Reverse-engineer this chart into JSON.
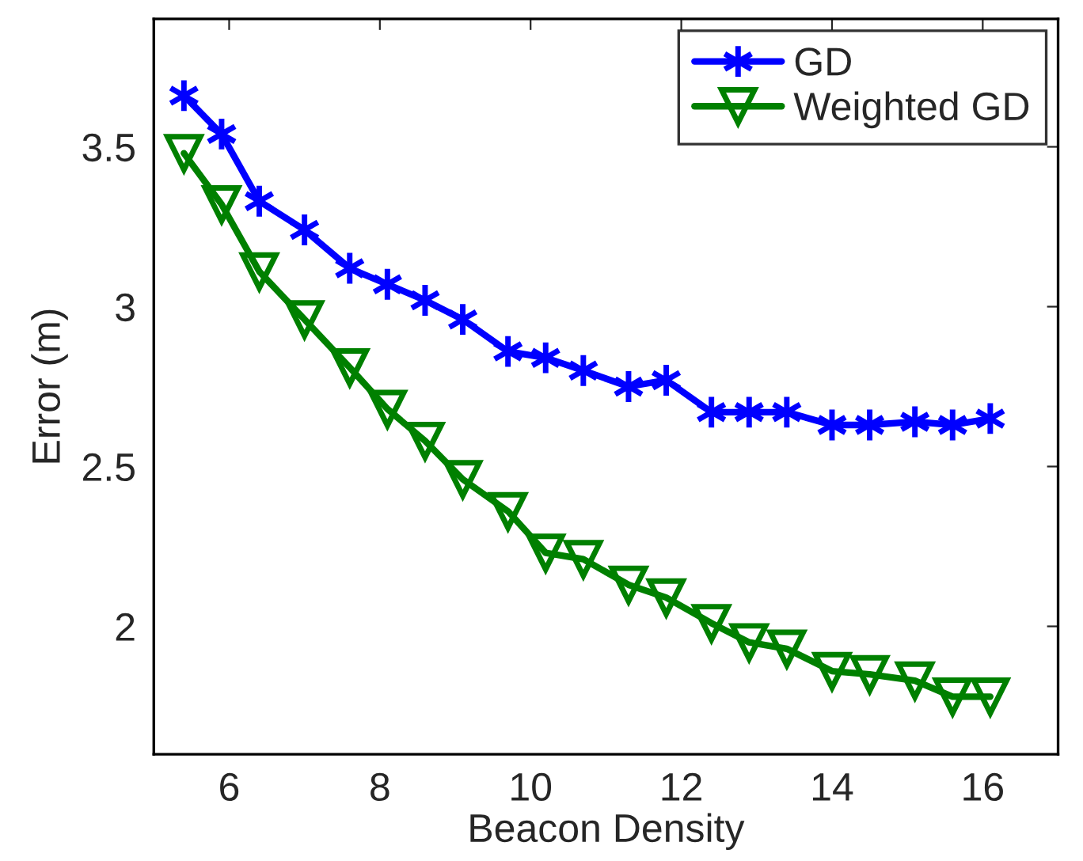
{
  "chart_data": {
    "type": "line",
    "xlabel": "Beacon Density",
    "ylabel": "Error (m)",
    "x": [
      5.4,
      5.9,
      6.4,
      7.0,
      7.6,
      8.1,
      8.6,
      9.1,
      9.7,
      10.2,
      10.7,
      11.3,
      11.8,
      12.4,
      12.9,
      13.4,
      14.0,
      14.5,
      15.1,
      15.6,
      16.1
    ],
    "series": [
      {
        "name": "GD",
        "color": "#0000ff",
        "marker": "cross",
        "values": [
          3.66,
          3.54,
          3.33,
          3.24,
          3.12,
          3.07,
          3.02,
          2.96,
          2.86,
          2.84,
          2.8,
          2.75,
          2.77,
          2.67,
          2.67,
          2.67,
          2.63,
          2.63,
          2.64,
          2.63,
          2.65
        ]
      },
      {
        "name": "Weighted GD",
        "color": "#008000",
        "marker": "triangle",
        "values": [
          3.48,
          3.32,
          3.11,
          2.96,
          2.81,
          2.68,
          2.58,
          2.46,
          2.36,
          2.23,
          2.21,
          2.13,
          2.09,
          2.01,
          1.95,
          1.93,
          1.86,
          1.85,
          1.83,
          1.78,
          1.78
        ]
      }
    ],
    "xlim": [
      5,
      17
    ],
    "ylim": [
      1.6,
      3.9
    ],
    "xticks": [
      6,
      8,
      10,
      12,
      14,
      16
    ],
    "yticks": [
      2,
      2.5,
      3,
      3.5
    ],
    "grid": false,
    "legend": "top right",
    "line_style": "solid"
  }
}
